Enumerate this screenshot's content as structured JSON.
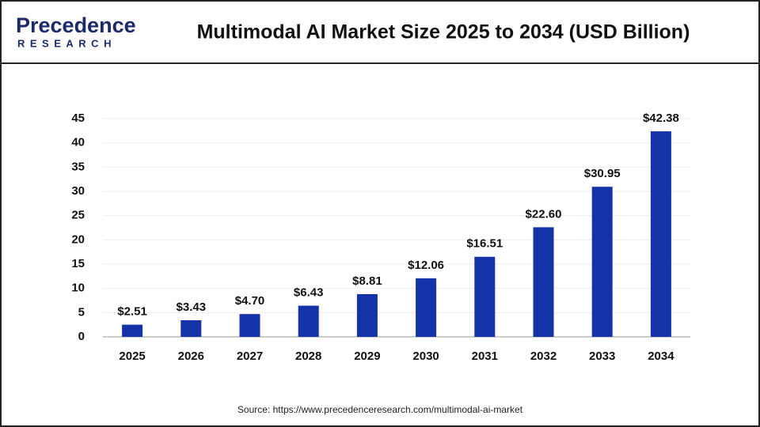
{
  "logo": {
    "name": "Precedence",
    "tagline": "RESEARCH"
  },
  "chart_data": {
    "type": "bar",
    "title": "Multimodal AI Market Size 2025 to 2034 (USD Billion)",
    "categories": [
      "2025",
      "2026",
      "2027",
      "2028",
      "2029",
      "2030",
      "2031",
      "2032",
      "2033",
      "2034"
    ],
    "values": [
      2.51,
      3.43,
      4.7,
      6.43,
      8.81,
      12.06,
      16.51,
      22.6,
      30.95,
      42.38
    ],
    "value_labels": [
      "$2.51",
      "$3.43",
      "$4.70",
      "$6.43",
      "$8.81",
      "$12.06",
      "$16.51",
      "$22.60",
      "$30.95",
      "$42.38"
    ],
    "color": "#1533a8",
    "ylim": [
      0,
      45
    ],
    "yticks": [
      0,
      5,
      10,
      15,
      20,
      25,
      30,
      35,
      40,
      45
    ],
    "grid": true,
    "source": "Source: https://www.precedenceresearch.com/multimodal-ai-market"
  }
}
